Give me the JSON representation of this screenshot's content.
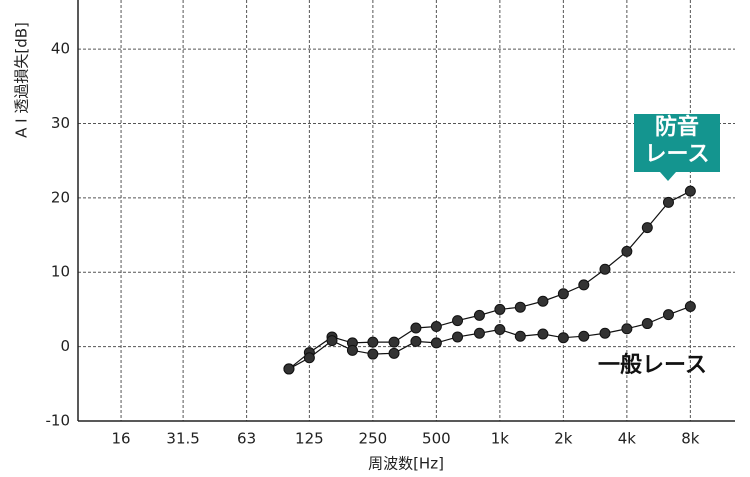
{
  "chart_data": {
    "type": "line",
    "ylabel": "A I 透過損失[dB]",
    "xlabel": "周波数[Hz]",
    "x": [
      100,
      125,
      160,
      200,
      250,
      315,
      400,
      500,
      630,
      800,
      1000,
      1250,
      1600,
      2000,
      2500,
      3150,
      4000,
      5000,
      6300,
      8000
    ],
    "series": [
      {
        "name": "防音\nレース",
        "color": "#111111",
        "values": [
          -3,
          -0.8,
          1.3,
          0.5,
          0.6,
          0.6,
          2.5,
          2.7,
          3.5,
          4.2,
          5,
          5.3,
          6.1,
          7.1,
          8.3,
          10.4,
          12.8,
          16,
          19.4,
          20.9
        ]
      },
      {
        "name": "一般レース",
        "color": "#111111",
        "values": [
          -3,
          -1.5,
          0.8,
          -0.5,
          -1,
          -0.9,
          0.7,
          0.5,
          1.3,
          1.8,
          2.3,
          1.4,
          1.7,
          1.2,
          1.4,
          1.8,
          2.4,
          3.1,
          4.3,
          5.4
        ]
      }
    ],
    "xscale": "log",
    "xlim": [
      10,
      11300
    ],
    "xticks": [
      16,
      31.5,
      63,
      125,
      250,
      500,
      {
        "value": 1000,
        "label": "1k"
      },
      {
        "value": 2000,
        "label": "2k"
      },
      {
        "value": 4000,
        "label": "4k"
      },
      {
        "value": 8000,
        "label": "8k"
      }
    ],
    "ylim": [
      -10,
      46.6
    ],
    "yticks": [
      -10,
      0,
      10,
      20,
      30,
      40
    ],
    "grid": true
  }
}
